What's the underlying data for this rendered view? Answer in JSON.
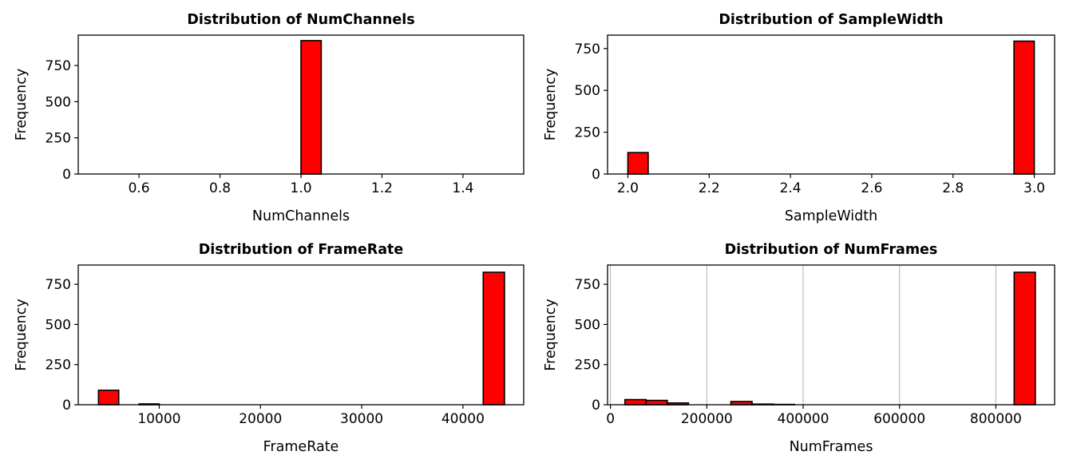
{
  "chart_data": [
    {
      "type": "bar",
      "title": "Distribution of NumChannels",
      "xlabel": "NumChannels",
      "ylabel": "Frequency",
      "xlim": [
        0.45,
        1.55
      ],
      "ylim": [
        0,
        960
      ],
      "xticks": [
        0.6,
        0.8,
        1.0,
        1.2,
        1.4
      ],
      "xtick_labels": [
        "0.6",
        "0.8",
        "1.0",
        "1.2",
        "1.4"
      ],
      "yticks": [
        0,
        250,
        500,
        750
      ],
      "ytick_labels": [
        "0",
        "250",
        "500",
        "750"
      ],
      "grid": false,
      "bar_color": "#ff0000",
      "edge_color": "#000000",
      "bins": [
        {
          "x0": 0.5,
          "x1": 1.0,
          "count": 0
        },
        {
          "x0": 1.0,
          "x1": 1.05,
          "count": 922
        },
        {
          "x0": 1.05,
          "x1": 1.5,
          "count": 0
        }
      ]
    },
    {
      "type": "bar",
      "title": "Distribution of SampleWidth",
      "xlabel": "SampleWidth",
      "ylabel": "Frequency",
      "xlim": [
        1.95,
        3.05
      ],
      "ylim": [
        0,
        830
      ],
      "xticks": [
        2.0,
        2.2,
        2.4,
        2.6,
        2.8,
        3.0
      ],
      "xtick_labels": [
        "2.0",
        "2.2",
        "2.4",
        "2.6",
        "2.8",
        "3.0"
      ],
      "yticks": [
        0,
        250,
        500,
        750
      ],
      "ytick_labels": [
        "0",
        "250",
        "500",
        "750"
      ],
      "grid": false,
      "bar_color": "#ff0000",
      "edge_color": "#000000",
      "bins": [
        {
          "x0": 2.0,
          "x1": 2.05,
          "count": 128
        },
        {
          "x0": 2.05,
          "x1": 2.95,
          "count": 0
        },
        {
          "x0": 2.95,
          "x1": 3.0,
          "count": 794
        }
      ]
    },
    {
      "type": "bar",
      "title": "Distribution of FrameRate",
      "xlabel": "FrameRate",
      "ylabel": "Frequency",
      "xlim": [
        2000,
        46000
      ],
      "ylim": [
        0,
        870
      ],
      "xticks": [
        10000,
        20000,
        30000,
        40000
      ],
      "xtick_labels": [
        "10000",
        "20000",
        "30000",
        "40000"
      ],
      "yticks": [
        0,
        250,
        500,
        750
      ],
      "ytick_labels": [
        "0",
        "250",
        "500",
        "750"
      ],
      "grid": false,
      "bar_color": "#ff0000",
      "edge_color": "#000000",
      "bins": [
        {
          "x0": 4000,
          "x1": 6000,
          "count": 90
        },
        {
          "x0": 6000,
          "x1": 8000,
          "count": 0
        },
        {
          "x0": 8000,
          "x1": 10000,
          "count": 5
        },
        {
          "x0": 10000,
          "x1": 42000,
          "count": 0
        },
        {
          "x0": 42000,
          "x1": 44100,
          "count": 825
        }
      ]
    },
    {
      "type": "bar",
      "title": "Distribution of NumFrames",
      "xlabel": "NumFrames",
      "ylabel": "Frequency",
      "xlim": [
        -6000,
        922000
      ],
      "ylim": [
        0,
        870
      ],
      "xticks": [
        0,
        200000,
        400000,
        600000,
        800000
      ],
      "xtick_labels": [
        "0",
        "200000",
        "400000",
        "600000",
        "800000"
      ],
      "yticks": [
        0,
        250,
        500,
        750
      ],
      "ytick_labels": [
        "0",
        "250",
        "500",
        "750"
      ],
      "grid": true,
      "grid_axis": "x",
      "bar_color": "#ff0000",
      "edge_color": "#000000",
      "bins": [
        {
          "x0": 30000,
          "x1": 74000,
          "count": 32
        },
        {
          "x0": 74000,
          "x1": 118000,
          "count": 27
        },
        {
          "x0": 118000,
          "x1": 162000,
          "count": 11
        },
        {
          "x0": 162000,
          "x1": 250000,
          "count": 0
        },
        {
          "x0": 250000,
          "x1": 294000,
          "count": 20
        },
        {
          "x0": 294000,
          "x1": 338000,
          "count": 4
        },
        {
          "x0": 338000,
          "x1": 382000,
          "count": 2
        },
        {
          "x0": 382000,
          "x1": 838000,
          "count": 0
        },
        {
          "x0": 838000,
          "x1": 882000,
          "count": 825
        }
      ]
    }
  ]
}
